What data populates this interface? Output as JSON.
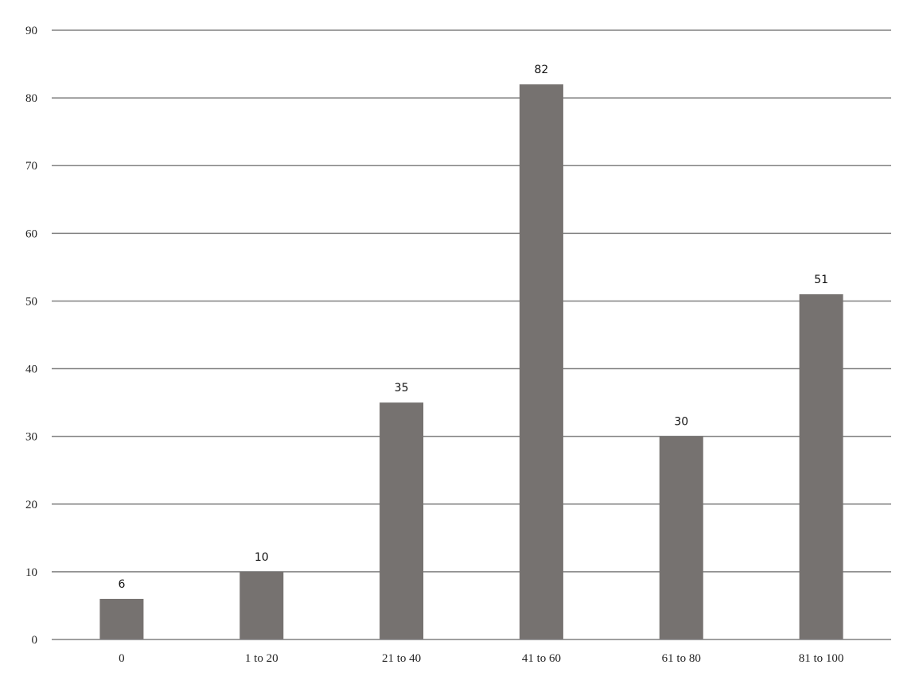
{
  "chart_data": {
    "type": "bar",
    "categories": [
      "0",
      "1 to 20",
      "21 to 40",
      "41 to 60",
      "61 to 80",
      "81 to 100"
    ],
    "values": [
      6,
      10,
      35,
      82,
      30,
      51
    ],
    "data_labels": [
      "6",
      "10",
      "35",
      "82",
      "30",
      "51"
    ],
    "yticks": [
      0,
      10,
      20,
      30,
      40,
      50,
      60,
      70,
      80,
      90
    ],
    "ytick_labels": [
      "0",
      "10",
      "20",
      "30",
      "40",
      "50",
      "60",
      "70",
      "80",
      "90"
    ],
    "ylim": [
      0,
      90
    ],
    "grid": true,
    "legend": "none",
    "colors": {
      "bar": "#767270",
      "grid": "#808080",
      "axis": "#808080",
      "text": "#222222"
    }
  }
}
